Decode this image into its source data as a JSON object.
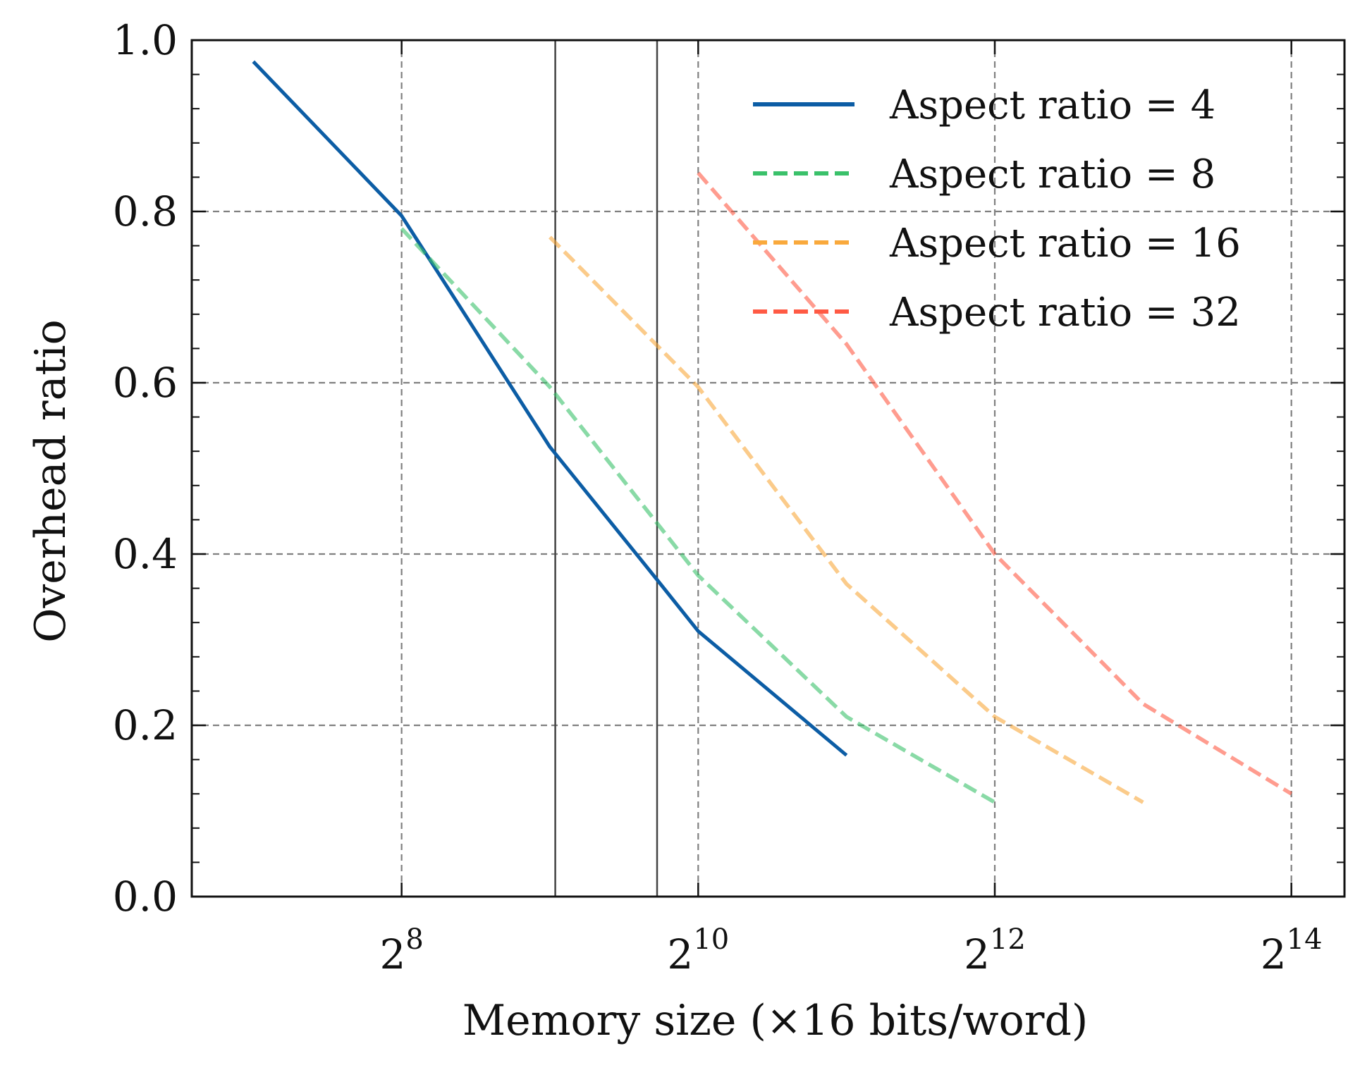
{
  "chart_data": {
    "type": "line",
    "xlabel": "Memory size (×16 bits/word)",
    "ylabel": "Overhead ratio",
    "xscale": "log2",
    "xlim": [
      96,
      21000
    ],
    "ylim": [
      0.0,
      1.0
    ],
    "xticks": [
      {
        "value": 256,
        "base": "2",
        "exp": "8"
      },
      {
        "value": 1024,
        "base": "2",
        "exp": "10"
      },
      {
        "value": 4096,
        "base": "2",
        "exp": "12"
      },
      {
        "value": 16384,
        "base": "2",
        "exp": "14"
      }
    ],
    "yticks": [
      {
        "value": 0.0,
        "label": "0.0"
      },
      {
        "value": 0.2,
        "label": "0.2"
      },
      {
        "value": 0.4,
        "label": "0.4"
      },
      {
        "value": 0.6,
        "label": "0.6"
      },
      {
        "value": 0.8,
        "label": "0.8"
      },
      {
        "value": 1.0,
        "label": "1.0"
      }
    ],
    "grid": true,
    "vertical_lines": [
      525,
      845
    ],
    "legend_position": "top-right",
    "series": [
      {
        "name": "Aspect ratio = 4",
        "color": "#0c5da5",
        "style": "solid",
        "opacity": 1.0,
        "x": [
          128,
          256,
          512,
          845,
          1024,
          2048
        ],
        "y": [
          0.975,
          0.795,
          0.525,
          0.37,
          0.31,
          0.165
        ]
      },
      {
        "name": "Aspect ratio = 8",
        "color": "#3ac16a",
        "style": "dashed",
        "opacity": 0.6,
        "x": [
          256,
          512,
          1024,
          2048,
          4096
        ],
        "y": [
          0.78,
          0.595,
          0.375,
          0.21,
          0.11
        ]
      },
      {
        "name": "Aspect ratio = 16",
        "color": "#f9a93c",
        "style": "dashed",
        "opacity": 0.6,
        "x": [
          512,
          1024,
          2048,
          4096,
          8192
        ],
        "y": [
          0.77,
          0.595,
          0.365,
          0.21,
          0.11
        ]
      },
      {
        "name": "Aspect ratio = 32",
        "color": "#ff5a44",
        "style": "dashed",
        "opacity": 0.6,
        "x": [
          1024,
          2048,
          4096,
          8192,
          16384
        ],
        "y": [
          0.845,
          0.645,
          0.4,
          0.225,
          0.12
        ]
      }
    ]
  }
}
